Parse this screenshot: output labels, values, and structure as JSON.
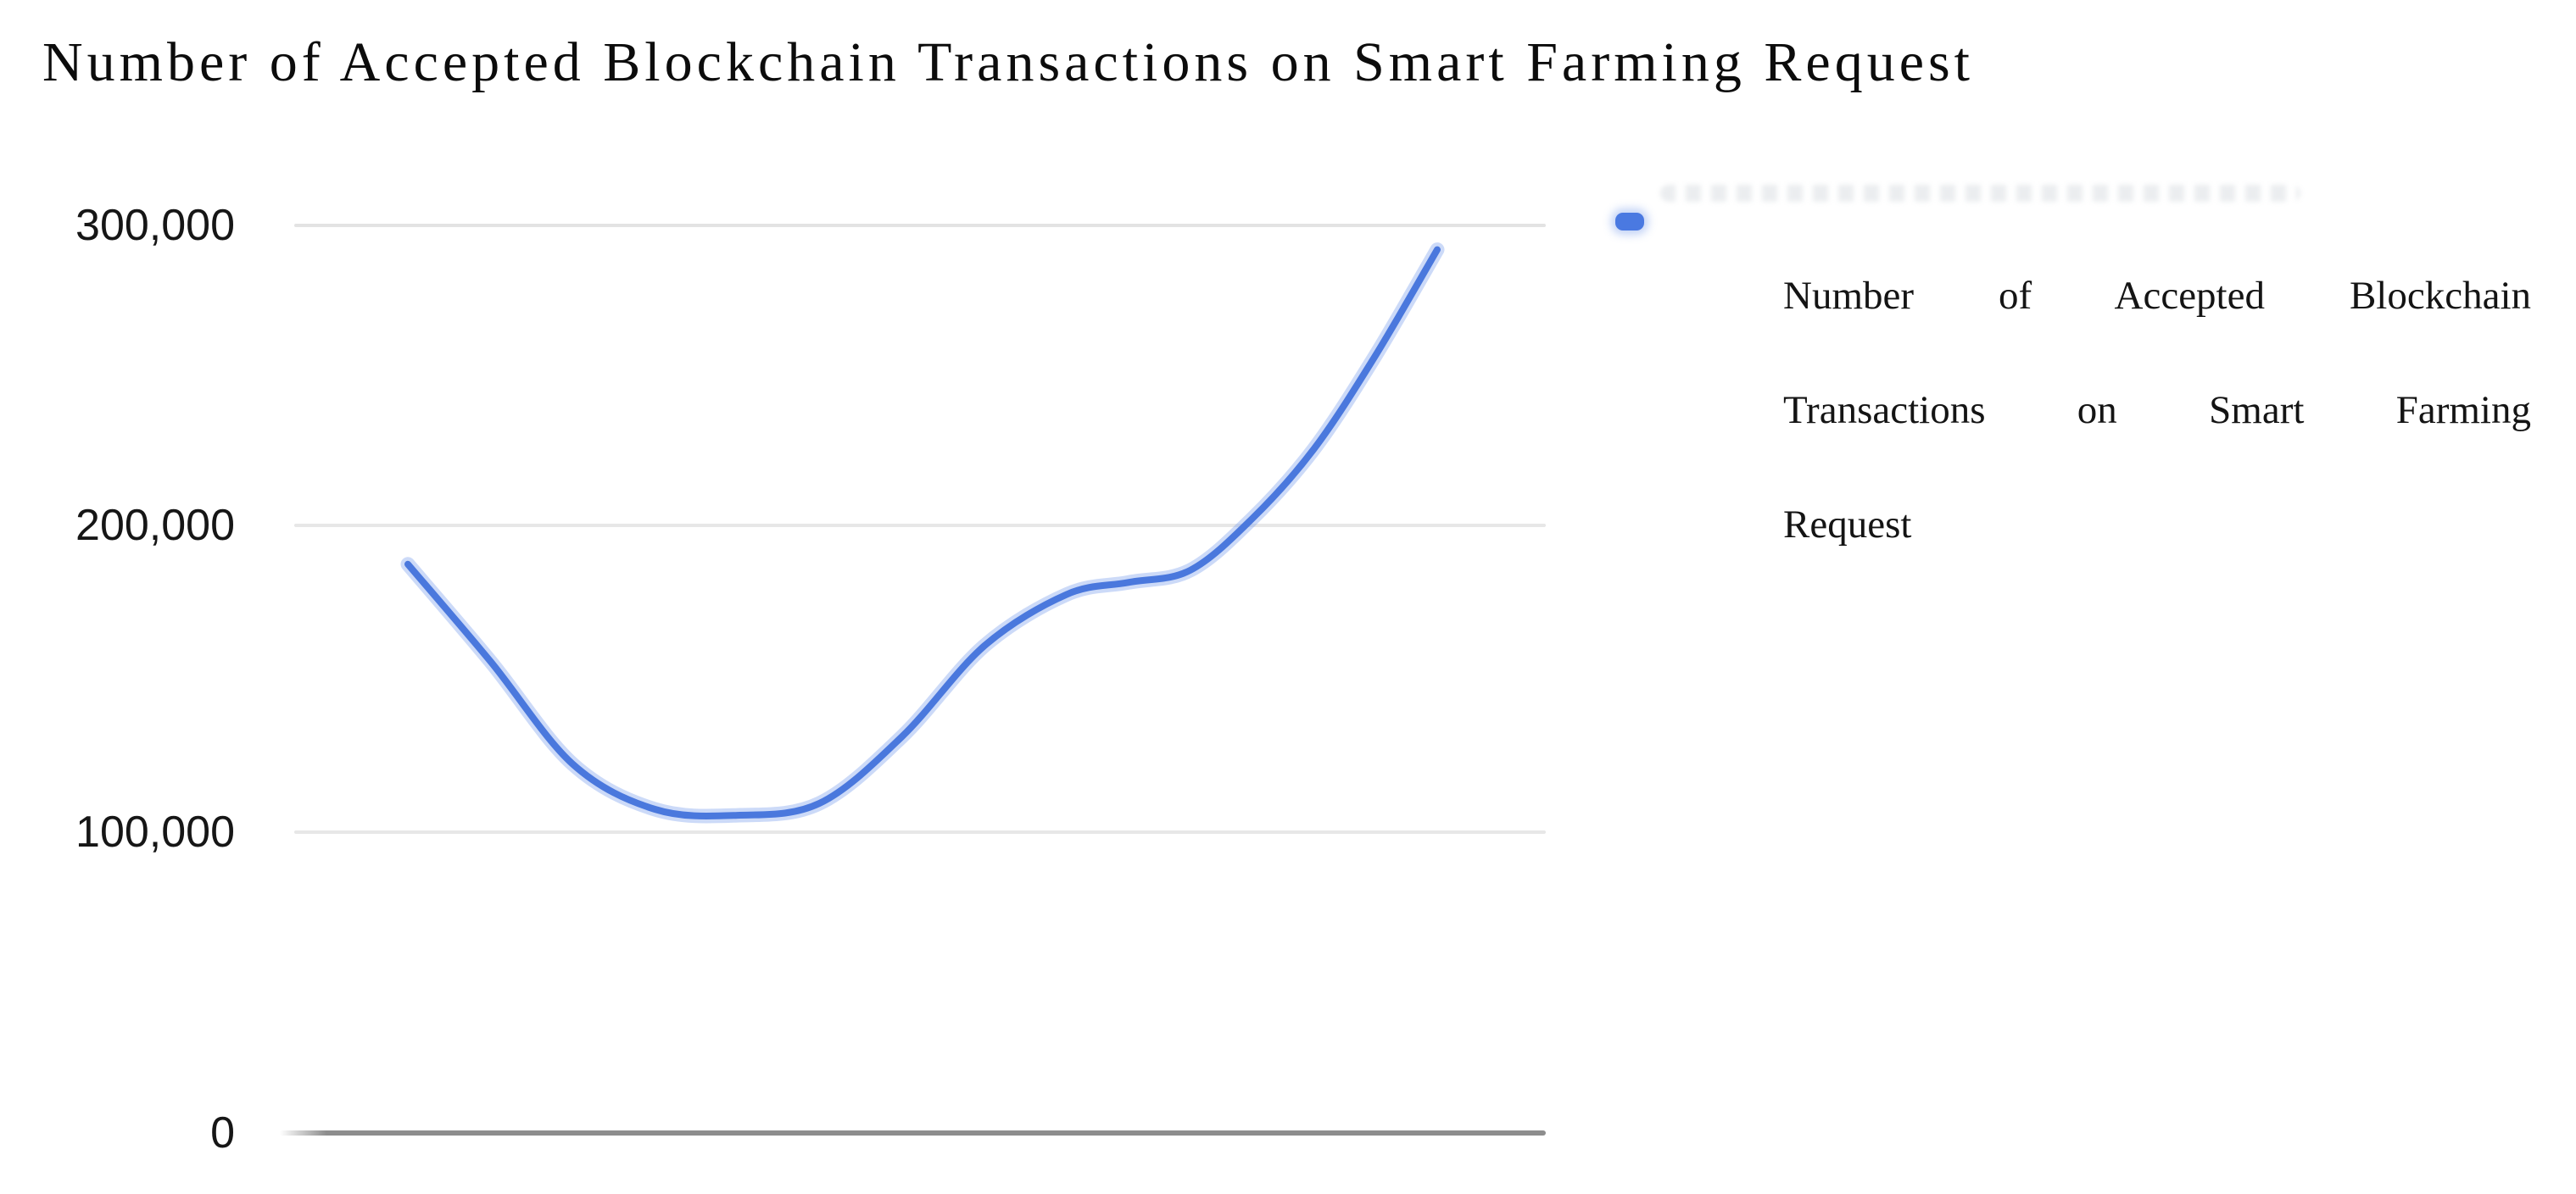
{
  "title": "Number of Accepted Blockchain Transactions on Smart Farming Request",
  "colors": {
    "line": "#4a78dd",
    "line_halo": "rgba(122,157,236,0.38)",
    "gridline": "#e7e7e7",
    "axis": "#8d8d8d",
    "text": "#141414",
    "legend_swatch": "#4a79e1"
  },
  "y_axis": {
    "tick_labels": [
      "300,000",
      "200,000",
      "100,000",
      "0"
    ]
  },
  "legend": {
    "full_label": "Number of Accepted Blockchain Transactions on Smart Farming Request",
    "lines": [
      "Number of Accepted Blockchain",
      "Transactions on Smart Farming",
      "Request"
    ],
    "marker": "blue-dash"
  },
  "chart_data": {
    "type": "line",
    "title": "Number of Accepted Blockchain Transactions on Smart Farming Request",
    "xlabel": "",
    "ylabel": "",
    "x_axis_labels_visible": false,
    "grid": "horizontal",
    "legend_position": "right",
    "ylim": [
      0,
      310000
    ],
    "yticks": [
      0,
      100000,
      200000,
      300000
    ],
    "series": [
      {
        "name": "Number of Accepted Blockchain Transactions on Smart Farming Request",
        "x_frac": [
          0.0,
          0.08,
          0.16,
          0.24,
          0.32,
          0.4,
          0.48,
          0.56,
          0.64,
          0.7,
          0.76,
          0.82,
          0.88,
          0.94,
          1.0
        ],
        "values": [
          188000,
          156000,
          122000,
          107000,
          105000,
          109000,
          131000,
          161000,
          178000,
          182000,
          186000,
          203000,
          226000,
          257000,
          292000
        ]
      }
    ]
  }
}
